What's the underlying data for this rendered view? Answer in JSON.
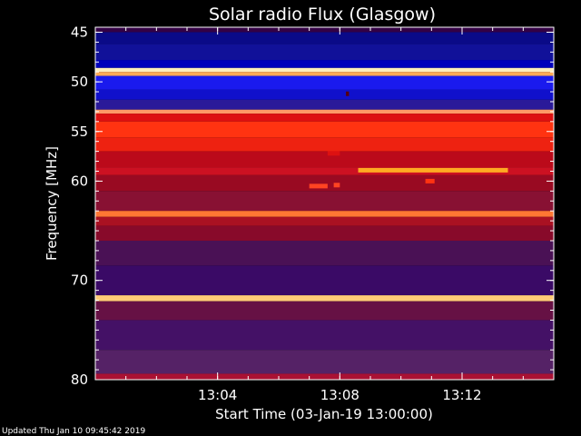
{
  "updated": "Updated Thu Jan 10 09:45:42 2019",
  "chart_data": {
    "type": "heatmap",
    "title": "Solar radio Flux (Glasgow)",
    "xlabel": "Start Time (03-Jan-19 13:00:00)",
    "ylabel": "Frequency [MHz]",
    "xlim": [
      0,
      15
    ],
    "ylim": [
      80.0,
      44.5
    ],
    "x_ticks": [
      {
        "value": 4,
        "label": "13:04"
      },
      {
        "value": 8,
        "label": "13:08"
      },
      {
        "value": 12,
        "label": "13:12"
      }
    ],
    "y_ticks": [
      {
        "value": 45,
        "label": "45"
      },
      {
        "value": 50,
        "label": "50"
      },
      {
        "value": 55,
        "label": "55"
      },
      {
        "value": 60,
        "label": "60"
      },
      {
        "value": 70,
        "label": "70"
      },
      {
        "value": 80,
        "label": "80"
      }
    ],
    "colorscale": [
      "#000033",
      "#1a1aff",
      "#990033",
      "#cc0000",
      "#ff3300",
      "#ffcc33",
      "#ffffcc"
    ],
    "bands": [
      {
        "f0": 44.5,
        "f1": 45.0,
        "color": "#330044"
      },
      {
        "f0": 45.0,
        "f1": 46.2,
        "color": "#0a0a88"
      },
      {
        "f0": 46.2,
        "f1": 47.8,
        "color": "#111199"
      },
      {
        "f0": 47.8,
        "f1": 48.6,
        "color": "#0000bb"
      },
      {
        "f0": 48.6,
        "f1": 49.0,
        "color": "#ffeebb"
      },
      {
        "f0": 49.0,
        "f1": 49.4,
        "color": "#ffaa55"
      },
      {
        "f0": 49.4,
        "f1": 50.8,
        "color": "#1a1aee"
      },
      {
        "f0": 50.8,
        "f1": 51.8,
        "color": "#1010cc"
      },
      {
        "f0": 51.8,
        "f1": 52.8,
        "color": "#2a1a99"
      },
      {
        "f0": 52.8,
        "f1": 53.2,
        "color": "#ff9966"
      },
      {
        "f0": 53.2,
        "f1": 54.0,
        "color": "#dd1111"
      },
      {
        "f0": 54.0,
        "f1": 55.6,
        "color": "#ff3311"
      },
      {
        "f0": 55.6,
        "f1": 57.0,
        "color": "#ee2211"
      },
      {
        "f0": 57.0,
        "f1": 58.6,
        "color": "#bb0a1a"
      },
      {
        "f0": 58.6,
        "f1": 59.4,
        "color": "#cc1122"
      },
      {
        "f0": 59.4,
        "f1": 61.0,
        "color": "#990a22"
      },
      {
        "f0": 61.0,
        "f1": 63.0,
        "color": "#881133"
      },
      {
        "f0": 63.0,
        "f1": 63.6,
        "color": "#ff7733"
      },
      {
        "f0": 63.6,
        "f1": 64.5,
        "color": "#aa1122"
      },
      {
        "f0": 64.5,
        "f1": 66.0,
        "color": "#880a2a"
      },
      {
        "f0": 66.0,
        "f1": 68.5,
        "color": "#4a1155"
      },
      {
        "f0": 68.5,
        "f1": 71.5,
        "color": "#3a0a66"
      },
      {
        "f0": 71.5,
        "f1": 72.1,
        "color": "#ffcc77"
      },
      {
        "f0": 72.1,
        "f1": 74.0,
        "color": "#661144"
      },
      {
        "f0": 74.0,
        "f1": 77.0,
        "color": "#441166"
      },
      {
        "f0": 77.0,
        "f1": 79.4,
        "color": "#552266"
      },
      {
        "f0": 79.4,
        "f1": 80.0,
        "color": "#aa1133"
      }
    ],
    "bursts": [
      {
        "t0": 8.6,
        "t1": 13.5,
        "f": 58.9,
        "color": "#ffaa22"
      },
      {
        "t0": 7.0,
        "t1": 7.6,
        "f": 60.5,
        "color": "#ff4422"
      },
      {
        "t0": 7.8,
        "t1": 8.0,
        "f": 60.4,
        "color": "#ff4422"
      },
      {
        "t0": 10.8,
        "t1": 11.1,
        "f": 60.0,
        "color": "#ff3311"
      },
      {
        "t0": 7.6,
        "t1": 8.0,
        "f": 57.2,
        "color": "#dd1111"
      },
      {
        "t0": 8.2,
        "t1": 8.3,
        "f": 51.2,
        "color": "#550011"
      }
    ]
  }
}
